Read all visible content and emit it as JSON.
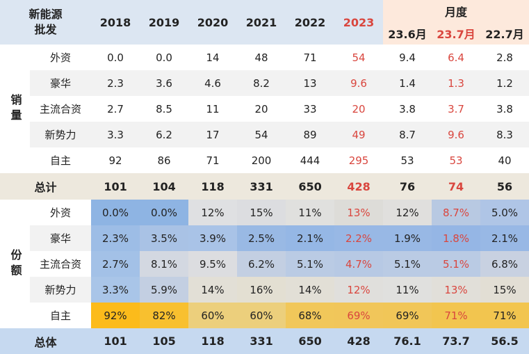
{
  "header": {
    "corner_line1": "新能源",
    "corner_line2": "批发",
    "years": [
      "2018",
      "2019",
      "2020",
      "2021",
      "2022",
      "2023"
    ],
    "month_group": "月度",
    "months": [
      "23.6月",
      "23.7月",
      "22.7月"
    ]
  },
  "sales": {
    "section_label": "销量",
    "rows": [
      {
        "cat": "外资",
        "values": [
          "0.0",
          "0.0",
          "14",
          "48",
          "71",
          "54",
          "9.4",
          "6.4",
          "2.8"
        ]
      },
      {
        "cat": "豪华",
        "values": [
          "2.3",
          "3.6",
          "4.6",
          "8.2",
          "13",
          "9.6",
          "1.4",
          "1.3",
          "1.2"
        ]
      },
      {
        "cat": "主流合资",
        "values": [
          "2.7",
          "8.5",
          "11",
          "20",
          "33",
          "20",
          "3.8",
          "3.7",
          "3.8"
        ]
      },
      {
        "cat": "新势力",
        "values": [
          "3.3",
          "6.2",
          "17",
          "54",
          "89",
          "49",
          "8.7",
          "9.6",
          "8.3"
        ]
      },
      {
        "cat": "自主",
        "values": [
          "92",
          "86",
          "71",
          "200",
          "444",
          "295",
          "53",
          "53",
          "40"
        ]
      }
    ],
    "total": {
      "label": "总计",
      "values": [
        "101",
        "104",
        "118",
        "331",
        "650",
        "428",
        "76",
        "74",
        "56"
      ]
    }
  },
  "share": {
    "section_label": "份额",
    "rows": [
      {
        "cat": "外资",
        "values": [
          "0.0%",
          "0.0%",
          "12%",
          "15%",
          "11%",
          "13%",
          "12%",
          "8.7%",
          "5.0%"
        ],
        "colors": [
          "#8eb4e3",
          "#8eb4e3",
          "#dfe0e2",
          "#dcdde0",
          "#e0e0de",
          "#dddcd8",
          "#e0dfdd",
          "#b8c9e2",
          "#afc5e6"
        ]
      },
      {
        "cat": "豪华",
        "values": [
          "2.3%",
          "3.5%",
          "3.9%",
          "2.5%",
          "2.1%",
          "2.2%",
          "1.9%",
          "1.8%",
          "2.1%"
        ],
        "colors": [
          "#9dbde6",
          "#a9c2e5",
          "#a9c3e7",
          "#99b9e4",
          "#95b7e5",
          "#98b8e5",
          "#98b8e5",
          "#95b6e5",
          "#98b8e5"
        ]
      },
      {
        "cat": "主流合资",
        "values": [
          "2.7%",
          "8.1%",
          "9.5%",
          "6.2%",
          "5.1%",
          "4.7%",
          "5.1%",
          "5.1%",
          "6.8%"
        ],
        "colors": [
          "#a3c1e7",
          "#d3d8e1",
          "#dcdde0",
          "#c3cfe2",
          "#bacbe4",
          "#b7c9e4",
          "#bacbe4",
          "#bacbe4",
          "#c8d1e1"
        ]
      },
      {
        "cat": "新势力",
        "values": [
          "3.3%",
          "5.9%",
          "14%",
          "16%",
          "14%",
          "12%",
          "11%",
          "13%",
          "15%"
        ],
        "colors": [
          "#a9c5e8",
          "#c3cfe2",
          "#e2dfd6",
          "#e3dfd2",
          "#e2dfd6",
          "#e0dfdc",
          "#e0e0de",
          "#e1dfd9",
          "#e2ded4"
        ]
      },
      {
        "cat": "自主",
        "values": [
          "92%",
          "82%",
          "60%",
          "60%",
          "68%",
          "69%",
          "69%",
          "71%",
          "71%"
        ],
        "colors": [
          "#fcbb1b",
          "#f8c02f",
          "#eccf7c",
          "#eccf7c",
          "#f1c75a",
          "#f1c65a",
          "#f1c658",
          "#f2c54f",
          "#f2c54f"
        ]
      }
    ],
    "total": {
      "label": "总体",
      "values": [
        "101",
        "105",
        "118",
        "331",
        "650",
        "428",
        "76.1",
        "73.7",
        "56.5"
      ]
    }
  },
  "highlight_columns": [
    5,
    7
  ],
  "colors": {
    "header_bg": "#dce6f2",
    "month_header_bg": "#fde9dc",
    "highlight_text": "#d9463e",
    "total1_bg": "#ede8dd",
    "total2_bg": "#c6d9f0",
    "stripe_bg": "#f2f2f2"
  }
}
